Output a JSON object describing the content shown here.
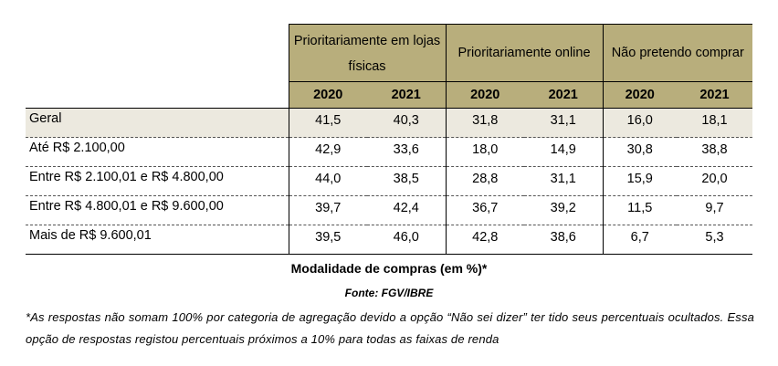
{
  "table": {
    "groups": [
      "Prioritariamente em lojas físicas",
      "Prioritariamente online",
      "Não pretendo comprar"
    ],
    "years": [
      "2020",
      "2021",
      "2020",
      "2021",
      "2020",
      "2021"
    ],
    "rows": [
      {
        "label": "Geral",
        "values": [
          "41,5",
          "40,3",
          "31,8",
          "31,1",
          "16,0",
          "18,1"
        ]
      },
      {
        "label": "Até R$ 2.100,00",
        "values": [
          "42,9",
          "33,6",
          "18,0",
          "14,9",
          "30,8",
          "38,8"
        ]
      },
      {
        "label": "Entre R$ 2.100,01 e R$ 4.800,00",
        "values": [
          "44,0",
          "38,5",
          "28,8",
          "31,1",
          "15,9",
          "20,0"
        ]
      },
      {
        "label": "Entre R$ 4.800,01 e R$ 9.600,00",
        "values": [
          "39,7",
          "42,4",
          "36,7",
          "39,2",
          "11,5",
          "9,7"
        ]
      },
      {
        "label": "Mais de R$ 9.600,01",
        "values": [
          "39,5",
          "46,0",
          "42,8",
          "38,6",
          "6,7",
          "5,3"
        ]
      }
    ]
  },
  "caption": "Modalidade de compras (em %)*",
  "source": "Fonte: FGV/IBRE",
  "note": "*As respostas não somam 100% por categoria de agregação devido a opção “Não sei dizer” ter tido seus percentuais ocultados. Essa opção de respostas registou percentuais próximos a 10% para todas as faixas de renda",
  "colors": {
    "header_bg": "#b8ae7c",
    "geral_row_bg": "#ece9df"
  }
}
